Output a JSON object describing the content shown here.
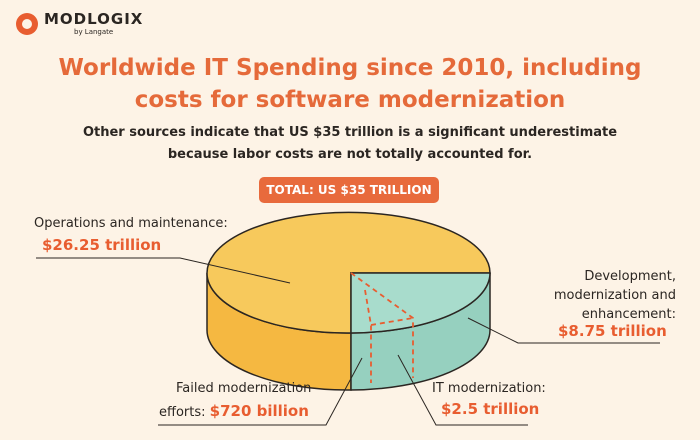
{
  "logo": {
    "name": "MODLOGIX",
    "sub": "by Langate"
  },
  "title_line1": "Worldwide IT Spending since 2010, including",
  "title_line2": "costs for software modernization",
  "subtitle_line1": "Other sources indicate that US $35 trillion is a significant underestimate",
  "subtitle_line2": "because labor costs are not totally accounted for.",
  "total": "TOTAL: US $35 TRILLION",
  "labels": {
    "ops": "Operations and maintenance:",
    "ops_value": "$26.25 trillion",
    "dev_line1": "Development,",
    "dev_line2": "modernization and",
    "dev_line3": "enhancement:",
    "dev_value": "$8.75 trillion",
    "failed_line1": "Failed modernization",
    "failed_line2_prefix": "efforts:",
    "failed_value": "$720 billion",
    "itmod": "IT modernization:",
    "itmod_value": "$2.5 trillion"
  },
  "colors": {
    "ops_top": "#f7c95c",
    "ops_side": "#f5b841",
    "dev_top": "#a8dccc",
    "dev_side": "#96d0bf",
    "accent": "#e85d30",
    "outline": "#2b2622"
  },
  "chart_data": {
    "type": "pie",
    "title": "Worldwide IT Spending since 2010, including costs for software modernization",
    "total_label": "TOTAL: US $35 TRILLION",
    "total": 35,
    "unit": "trillion USD",
    "slices": [
      {
        "label": "Operations and maintenance",
        "value": 26.25,
        "display": "$26.25 trillion",
        "color": "#f7c95c"
      },
      {
        "label": "Development, modernization and enhancement",
        "value": 8.75,
        "display": "$8.75 trillion",
        "color": "#a8dccc"
      }
    ],
    "sub_slices": [
      {
        "label": "IT modernization",
        "value": 2.5,
        "display": "$2.5 trillion",
        "part_of": "Development, modernization and enhancement"
      },
      {
        "label": "Failed modernization efforts",
        "value": 0.72,
        "display": "$720 billion",
        "part_of": "IT modernization"
      }
    ]
  }
}
